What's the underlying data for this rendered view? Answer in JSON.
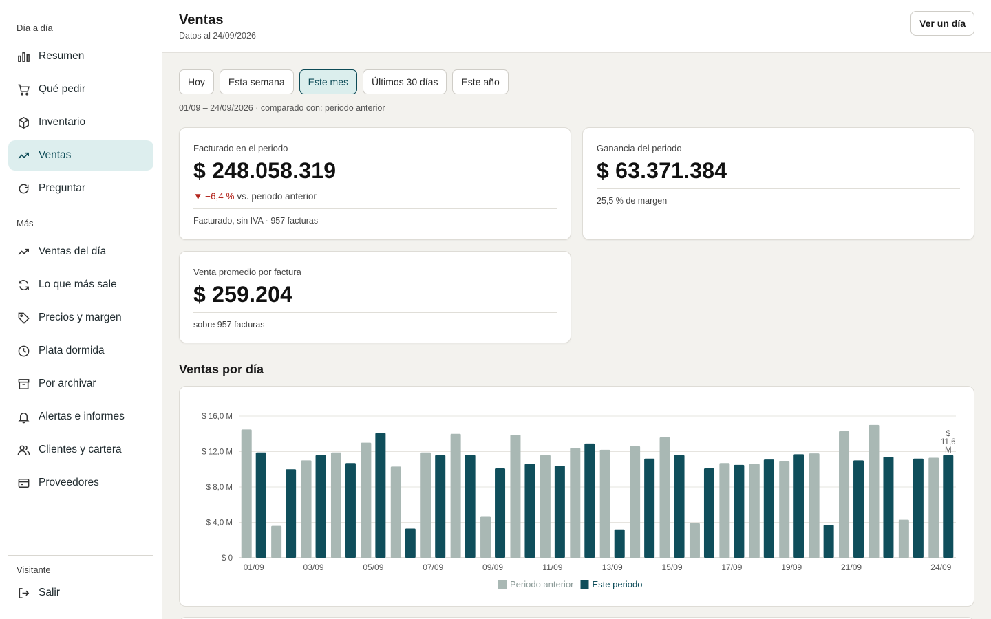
{
  "sidebar": {
    "section_daily": "Día a día",
    "section_more": "Más",
    "section_visitor": "Visitante",
    "items": [
      {
        "label": "Resumen",
        "icon": "bar-chart-icon"
      },
      {
        "label": "Qué pedir",
        "icon": "cart-icon"
      },
      {
        "label": "Inventario",
        "icon": "box-icon"
      },
      {
        "label": "Ventas",
        "icon": "trend-up-icon",
        "active": true
      },
      {
        "label": "Preguntar",
        "icon": "chat-bubble-icon"
      },
      {
        "label": "Ventas del día",
        "icon": "trend-up-icon"
      },
      {
        "label": "Lo que más sale",
        "icon": "refresh-icon"
      },
      {
        "label": "Precios y margen",
        "icon": "tag-icon"
      },
      {
        "label": "Plata dormida",
        "icon": "clock-icon"
      },
      {
        "label": "Por archivar",
        "icon": "archive-icon"
      },
      {
        "label": "Alertas e informes",
        "icon": "bell-icon"
      },
      {
        "label": "Clientes y cartera",
        "icon": "users-icon"
      },
      {
        "label": "Proveedores",
        "icon": "wallet-icon"
      }
    ],
    "logout": {
      "label": "Salir",
      "icon": "logout-icon"
    }
  },
  "header": {
    "title": "Ventas",
    "subtitle": "Datos al 24/09/2026",
    "day_button": "Ver un día"
  },
  "period_tabs": [
    {
      "label": "Hoy"
    },
    {
      "label": "Esta semana"
    },
    {
      "label": "Este mes",
      "active": true
    },
    {
      "label": "Últimos 30 días"
    },
    {
      "label": "Este año"
    }
  ],
  "range_text": "01/09 – 24/09/2026 · comparado con: periodo anterior",
  "cards": {
    "billed": {
      "label": "Facturado en el periodo",
      "value": "$ 248.058.319",
      "delta_arrow": "▼",
      "delta_value": "−6,4 %",
      "delta_text": "vs. periodo anterior",
      "foot": "Facturado, sin IVA · 957 facturas"
    },
    "profit": {
      "label": "Ganancia del periodo",
      "value": "$ 63.371.384",
      "foot": "25,5 % de margen"
    },
    "average": {
      "label": "Venta promedio por factura",
      "value": "$ 259.204",
      "foot": "sobre 957 facturas"
    }
  },
  "colors": {
    "accent": "#0d4b57",
    "previous_series": "#a9b8b4",
    "current_series": "#0f4e5b",
    "negative": "#b3261e"
  },
  "chart_section_title": "Ventas por día",
  "chart_data": {
    "type": "bar",
    "title": "",
    "xlabel": "",
    "ylabel": "",
    "ylim": [
      0,
      16
    ],
    "y_ticks": [
      "$ 0",
      "$ 4,0 M",
      "$ 8,0 M",
      "$ 12,0 M",
      "$ 16,0 M"
    ],
    "y_tick_values": [
      0,
      4,
      8,
      12,
      16
    ],
    "grid": true,
    "legend_position": "bottom-center",
    "categories": [
      "01/09",
      "02/09",
      "03/09",
      "04/09",
      "05/09",
      "06/09",
      "07/09",
      "08/09",
      "09/09",
      "10/09",
      "11/09",
      "12/09",
      "13/09",
      "14/09",
      "15/09",
      "16/09",
      "17/09",
      "18/09",
      "19/09",
      "20/09",
      "21/09",
      "22/09",
      "23/09",
      "24/09"
    ],
    "x_tick_labels": [
      "01/09",
      "",
      "03/09",
      "",
      "05/09",
      "",
      "07/09",
      "",
      "09/09",
      "",
      "11/09",
      "",
      "13/09",
      "",
      "15/09",
      "",
      "17/09",
      "",
      "19/09",
      "",
      "21/09",
      "",
      "",
      "24/09"
    ],
    "series": [
      {
        "name": "Periodo anterior",
        "values": [
          14.5,
          3.6,
          11.0,
          11.9,
          13.0,
          10.3,
          11.9,
          14.0,
          4.7,
          13.9,
          11.6,
          12.4,
          12.2,
          12.6,
          13.6,
          3.9,
          10.7,
          10.6,
          10.9,
          11.8,
          14.3,
          15.0,
          4.3,
          11.3
        ]
      },
      {
        "name": "Este periodo",
        "values": [
          11.9,
          10.0,
          11.6,
          10.7,
          14.1,
          3.3,
          11.6,
          11.6,
          10.1,
          10.6,
          10.4,
          12.9,
          3.2,
          11.2,
          11.6,
          10.1,
          10.5,
          11.1,
          11.7,
          3.7,
          11.0,
          11.4,
          11.2,
          11.6
        ]
      }
    ],
    "annotation": {
      "lines": [
        "$",
        "11,6",
        "M"
      ]
    }
  }
}
